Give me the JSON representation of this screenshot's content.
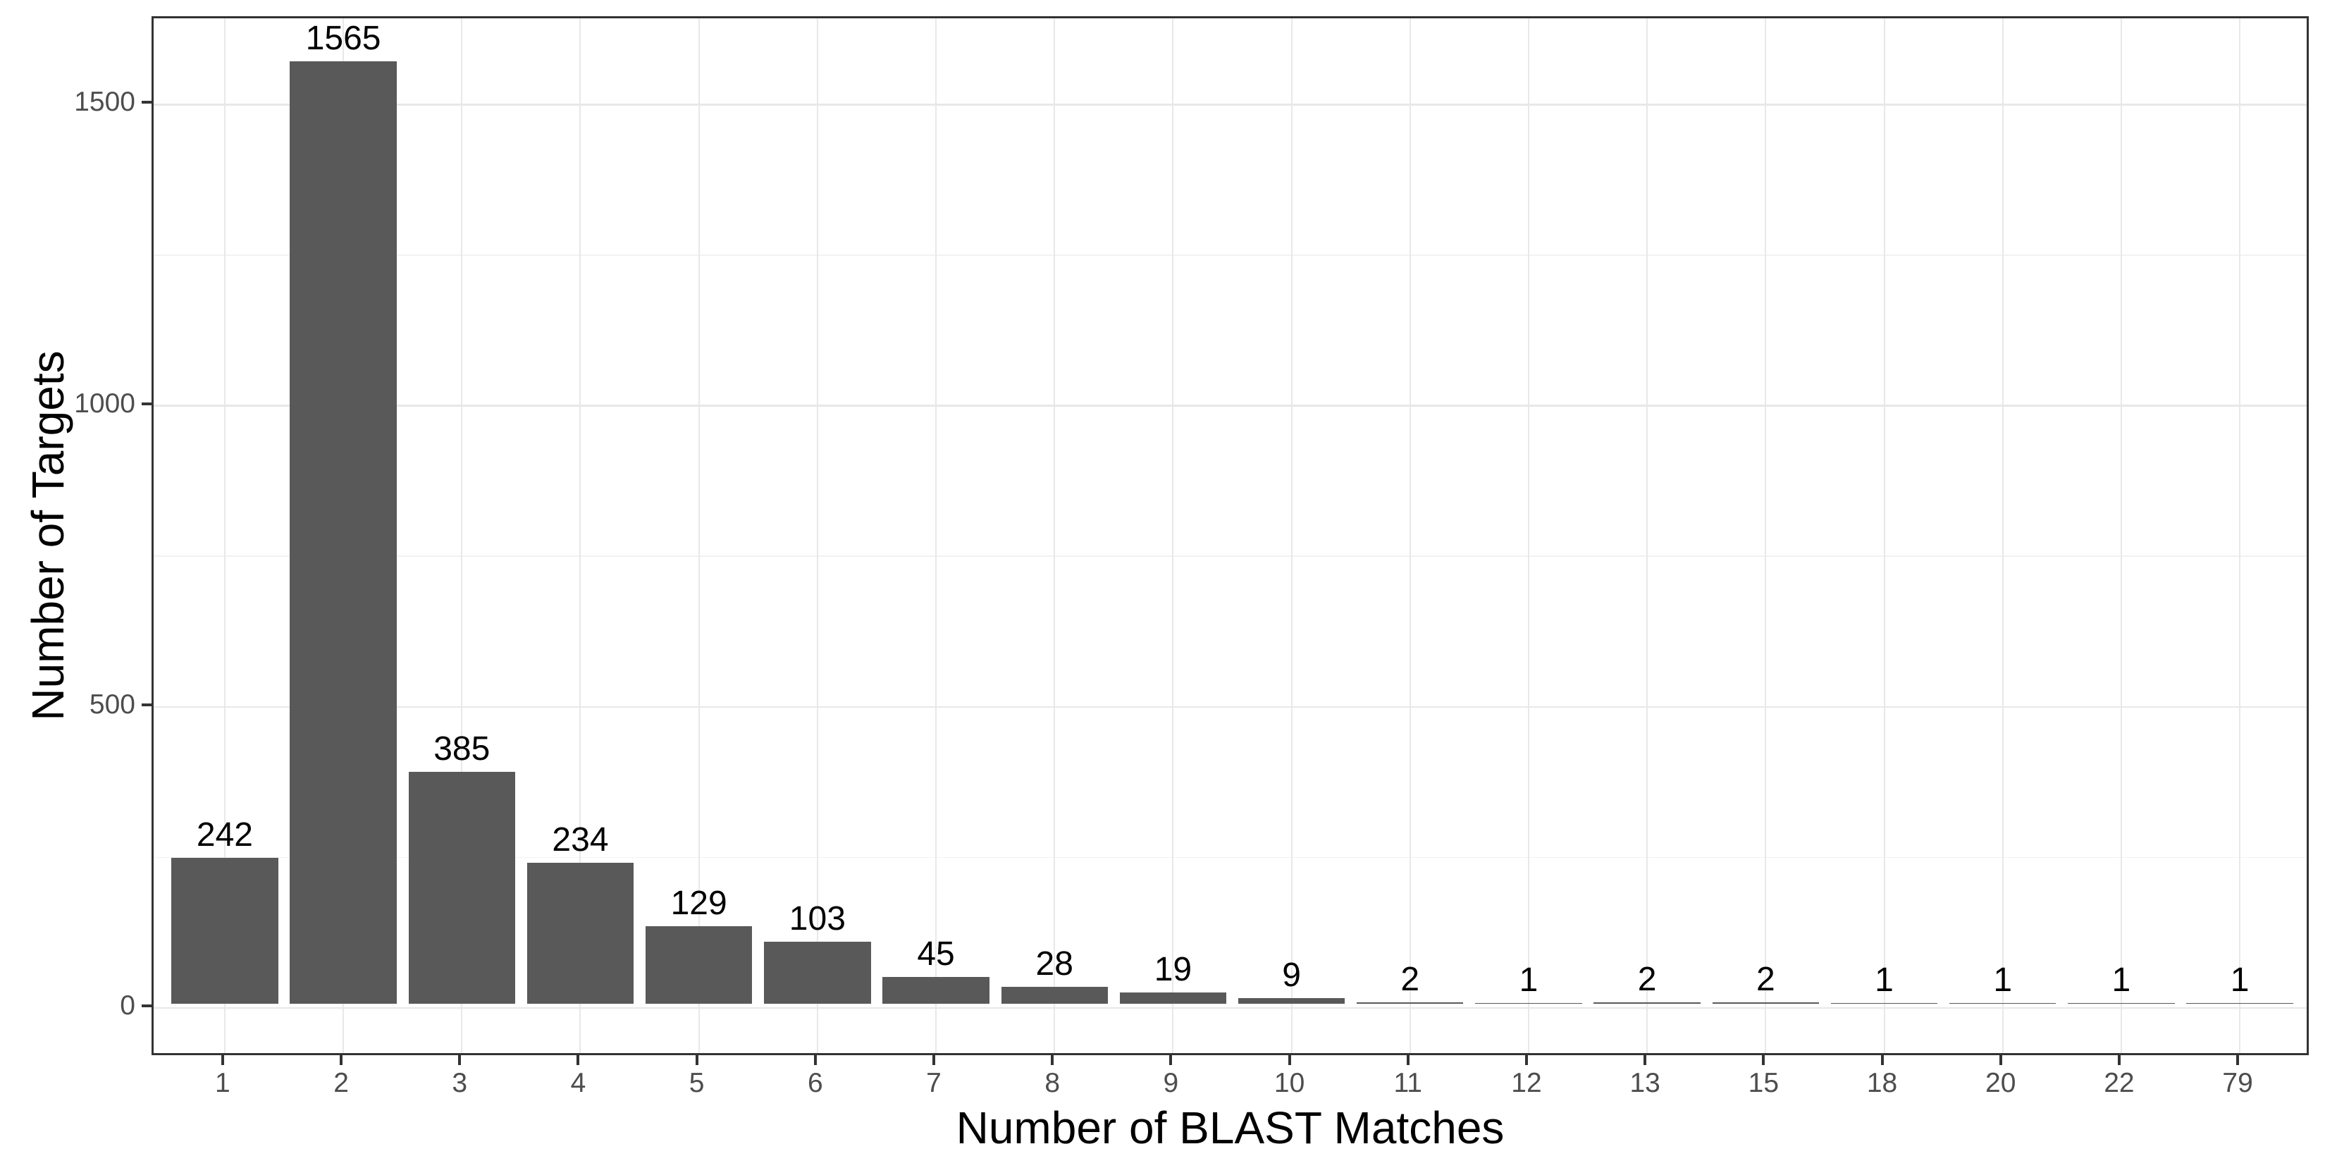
{
  "chart_data": {
    "type": "bar",
    "title": "",
    "xlabel": "Number of BLAST Matches",
    "ylabel": "Number of Targets",
    "categories": [
      "1",
      "2",
      "3",
      "4",
      "5",
      "6",
      "7",
      "8",
      "9",
      "10",
      "11",
      "12",
      "13",
      "15",
      "18",
      "20",
      "22",
      "79"
    ],
    "values": [
      242,
      1565,
      385,
      234,
      129,
      103,
      45,
      28,
      19,
      9,
      2,
      1,
      2,
      2,
      1,
      1,
      1,
      1
    ],
    "bar_labels": [
      "242",
      "1565",
      "385",
      "234",
      "129",
      "103",
      "45",
      "28",
      "19",
      "9",
      "2",
      "1",
      "2",
      "2",
      "1",
      "1",
      "1",
      "1"
    ],
    "y_ticks": [
      0,
      500,
      1000,
      1500
    ],
    "y_minor_gridlines": [
      250,
      750,
      1250
    ],
    "ylim": [
      -82,
      1645
    ],
    "bar_relative_width": 0.9,
    "grid": {
      "horizontal": "major+minor",
      "vertical": "major"
    },
    "legend": "none",
    "colors": {
      "bar": "#595959",
      "panel_border": "#333333",
      "axis_tick": "#333333",
      "tick_label": "#4d4d4d",
      "axis_title": "#000000",
      "bar_value_label": "#000000",
      "grid_major": "#e8e8e8",
      "grid_minor": "#f2f2f2",
      "background": "#ffffff"
    }
  }
}
